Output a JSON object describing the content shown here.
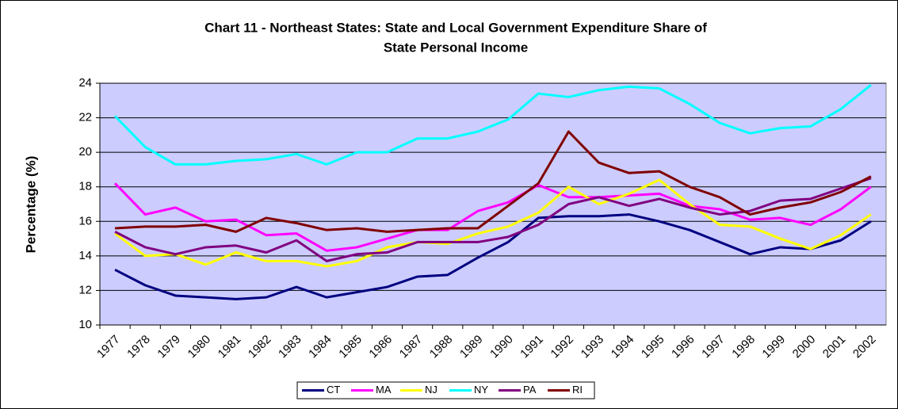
{
  "chart_data": {
    "type": "line",
    "title": [
      "Chart 11 - Northeast States: State and Local Government Expenditure Share of",
      "State Personal Income"
    ],
    "y_label": "Percentage (%)",
    "categories": [
      "1977",
      "1978",
      "1979",
      "1980",
      "1981",
      "1982",
      "1983",
      "1984",
      "1985",
      "1986",
      "1987",
      "1988",
      "1989",
      "1990",
      "1991",
      "1992",
      "1993",
      "1994",
      "1995",
      "1996",
      "1997",
      "1998",
      "1999",
      "2000",
      "2001",
      "2002"
    ],
    "series": [
      {
        "name": "CT",
        "color": "#000080",
        "values": [
          13.2,
          12.3,
          11.7,
          11.6,
          11.5,
          11.6,
          12.2,
          11.6,
          11.9,
          12.2,
          12.8,
          12.9,
          13.9,
          14.8,
          16.2,
          16.3,
          16.3,
          16.4,
          16.0,
          15.5,
          14.8,
          14.1,
          14.5,
          14.4,
          14.9,
          16.0
        ]
      },
      {
        "name": "MA",
        "color": "#FF00FF",
        "values": [
          18.2,
          16.4,
          16.8,
          16.0,
          16.1,
          15.2,
          15.3,
          14.3,
          14.5,
          15.0,
          15.5,
          15.5,
          16.6,
          17.1,
          18.1,
          17.4,
          17.4,
          17.5,
          17.6,
          16.9,
          16.7,
          16.1,
          16.2,
          15.8,
          16.7,
          18.0
        ]
      },
      {
        "name": "NJ",
        "color": "#FFFF00",
        "values": [
          15.3,
          14.0,
          14.1,
          13.5,
          14.2,
          13.7,
          13.7,
          13.4,
          13.7,
          14.5,
          14.8,
          14.7,
          15.3,
          15.7,
          16.5,
          18.0,
          17.0,
          17.6,
          18.4,
          17.0,
          15.8,
          15.7,
          15.0,
          14.4,
          15.2,
          16.4
        ]
      },
      {
        "name": "NY",
        "color": "#00FFFF",
        "values": [
          22.1,
          20.3,
          19.3,
          19.3,
          19.5,
          19.6,
          19.9,
          19.3,
          20.0,
          20.0,
          20.8,
          20.8,
          21.2,
          21.9,
          23.4,
          23.2,
          23.6,
          23.8,
          23.7,
          22.8,
          21.7,
          21.1,
          21.4,
          21.5,
          22.5,
          23.9
        ]
      },
      {
        "name": "PA",
        "color": "#800080",
        "values": [
          15.4,
          14.5,
          14.1,
          14.5,
          14.6,
          14.2,
          14.9,
          13.7,
          14.1,
          14.2,
          14.8,
          14.8,
          14.8,
          15.1,
          15.8,
          17.0,
          17.4,
          16.9,
          17.3,
          16.8,
          16.4,
          16.6,
          17.2,
          17.3,
          17.9,
          18.5
        ]
      },
      {
        "name": "RI",
        "color": "#800000",
        "values": [
          15.6,
          15.7,
          15.7,
          15.8,
          15.4,
          16.2,
          15.9,
          15.5,
          15.6,
          15.4,
          15.5,
          15.6,
          15.6,
          16.9,
          18.2,
          21.2,
          19.4,
          18.8,
          18.9,
          18.0,
          17.4,
          16.4,
          16.8,
          17.1,
          17.7,
          18.6
        ]
      }
    ],
    "ylim": [
      10,
      24
    ],
    "yticks": [
      10,
      12,
      14,
      16,
      18,
      20,
      22,
      24
    ],
    "grid": true,
    "plot_background": "#CCCCFF",
    "legend": "bottom"
  }
}
